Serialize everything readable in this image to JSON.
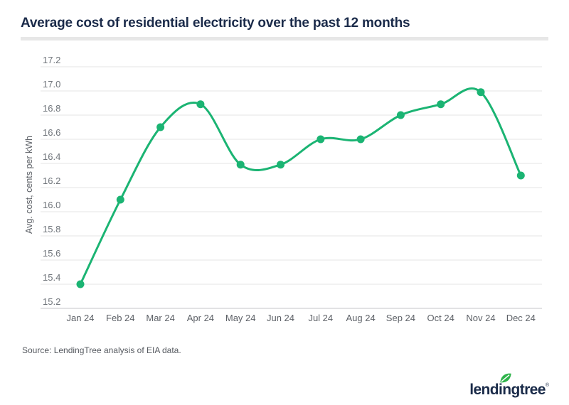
{
  "header": {
    "title": "Average cost of residential electricity over the past 12 months"
  },
  "chart_data": {
    "type": "line",
    "title": "Average cost of residential electricity over the past 12 months",
    "categories": [
      "Jan 24",
      "Feb 24",
      "Mar 24",
      "Apr 24",
      "May 24",
      "Jun 24",
      "Jul 24",
      "Aug 24",
      "Sep 24",
      "Oct 24",
      "Nov 24",
      "Dec 24"
    ],
    "series": [
      {
        "name": "Avg. cost, cents per kWh",
        "values": [
          15.4,
          16.1,
          16.7,
          16.89,
          16.39,
          16.39,
          16.6,
          16.6,
          16.8,
          16.89,
          16.99,
          16.3
        ]
      }
    ],
    "xlabel": "",
    "ylabel": "Avg. cost, cents per kWh",
    "ylim": [
      15.2,
      17.2
    ],
    "yticks": [
      17.2,
      17.0,
      16.8,
      16.6,
      16.4,
      16.2,
      16.0,
      15.8,
      15.6,
      15.4,
      15.2
    ],
    "ytick_format": "one-decimal",
    "grid": "horizontal",
    "legend": "none",
    "line_style": "smooth-curve-with-dot-markers"
  },
  "colors": {
    "line": "#1bb473",
    "marker": "#1bb473",
    "title_navy": "#1b2b4a",
    "gridline": "#e5e5e5",
    "axis_baseline": "#c4c6c8",
    "ytick_label": "#70757b",
    "xtick_label": "#5d6167",
    "ylabel_text": "#5d6167",
    "leaf_green": "#2fb34b",
    "logo_navy": "#1a2b49"
  },
  "footer": {
    "source": "Source: LendingTree analysis of EIA data.",
    "logo_text": "lendingtree",
    "logo_reg": "®"
  }
}
